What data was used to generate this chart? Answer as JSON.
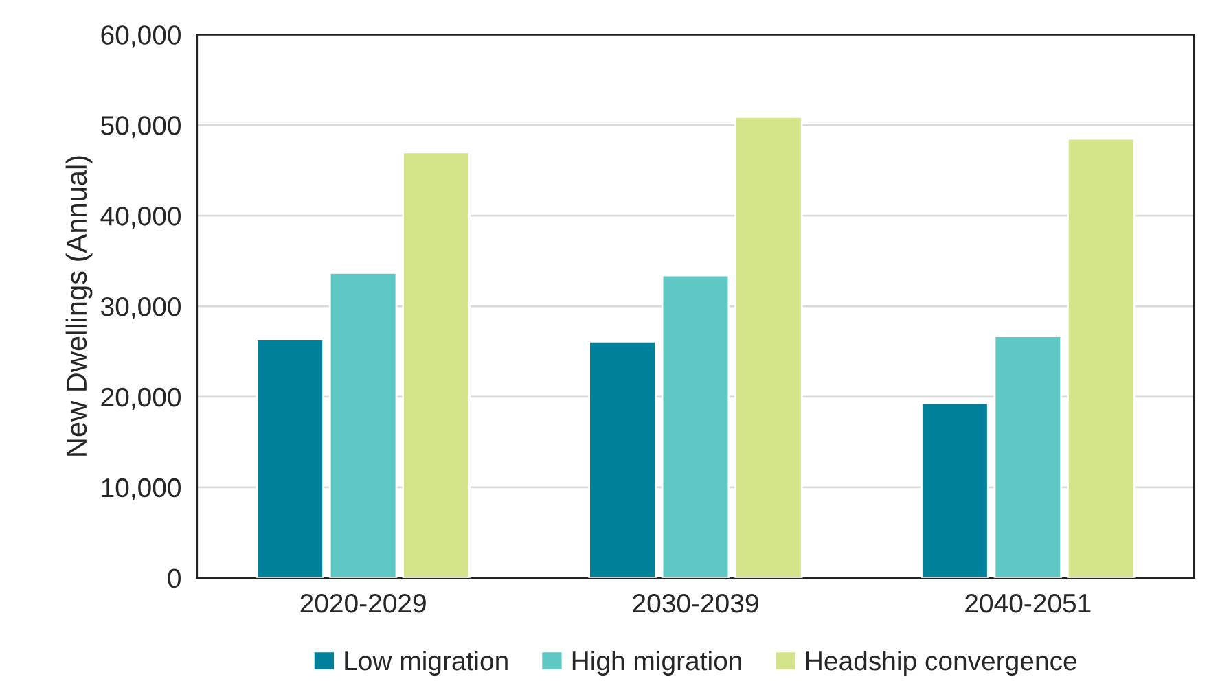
{
  "chart_data": {
    "type": "bar",
    "ylabel": "New Dwellings (Annual)",
    "categories": [
      "2020-2029",
      "2030-2039",
      "2040-2051"
    ],
    "series": [
      {
        "name": "Low migration",
        "color": "#00819b",
        "values": [
          26400,
          26100,
          19300
        ]
      },
      {
        "name": "High migration",
        "color": "#5fc8c4",
        "values": [
          33700,
          33400,
          26700
        ]
      },
      {
        "name": "Headship convergence",
        "color": "#d4e48a",
        "values": [
          47000,
          50900,
          48500
        ]
      }
    ],
    "ylim": [
      0,
      60000
    ],
    "yticks": [
      {
        "value": 0,
        "label": "0"
      },
      {
        "value": 10000,
        "label": "10,000"
      },
      {
        "value": 20000,
        "label": "20,000"
      },
      {
        "value": 30000,
        "label": "30,000"
      },
      {
        "value": 40000,
        "label": "40,000"
      },
      {
        "value": 50000,
        "label": "50,000"
      },
      {
        "value": 60000,
        "label": "60,000"
      }
    ],
    "grid": "y",
    "legend": "bottom"
  }
}
